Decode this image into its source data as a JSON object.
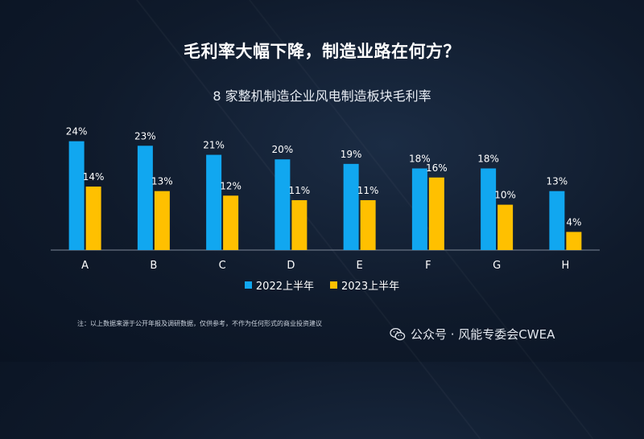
{
  "header": {
    "headline": "毛利率大幅下降，制造业路在何方？"
  },
  "chart_data": {
    "type": "bar",
    "title": "8 家整机制造企业风电制造板块毛利率",
    "categories": [
      "A",
      "B",
      "C",
      "D",
      "E",
      "F",
      "G",
      "H"
    ],
    "series": [
      {
        "name": "2022上半年",
        "color": "#11a7f0",
        "values": [
          24,
          23,
          21,
          20,
          19,
          18,
          18,
          13
        ],
        "labels": [
          "24%",
          "23%",
          "21%",
          "20%",
          "19%",
          "18%",
          "18%",
          "13%"
        ]
      },
      {
        "name": "2023上半年",
        "color": "#ffc000",
        "values": [
          14,
          13,
          12,
          11,
          11,
          16,
          10,
          4
        ],
        "labels": [
          "14%",
          "13%",
          "12%",
          "11%",
          "11%",
          "16%",
          "10%",
          "4%"
        ]
      }
    ],
    "ylim": [
      0,
      26
    ],
    "grid": false,
    "legend_position": "bottom"
  },
  "footer": {
    "note": "注：以上数据来源于公开年报及调研数据，仅供参考，不作为任何形式的商业投资建议",
    "watermark": "公众号 · 风能专委会CWEA",
    "watermark_icon": "wechat-icon"
  }
}
